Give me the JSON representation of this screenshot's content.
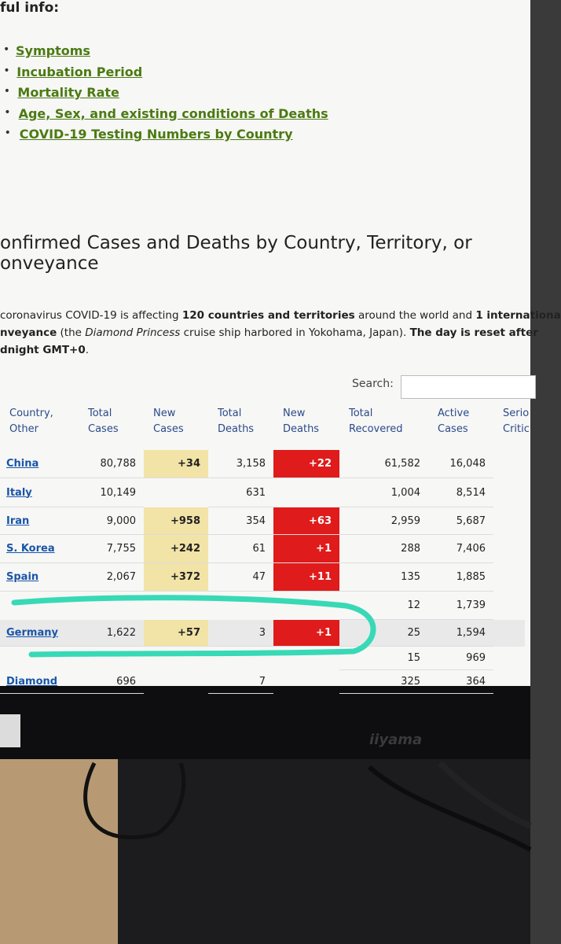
{
  "header": {
    "title": "ful info:"
  },
  "links": [
    "Symptoms",
    "Incubation Period",
    "Mortality Rate",
    "Age, Sex, and existing conditions of Deaths",
    "COVID-19 Testing Numbers by Country"
  ],
  "section": {
    "title_lines": [
      "onfirmed Cases and Deaths by Country, Territory, or",
      "onveyance"
    ],
    "intro_lines": [
      [
        {
          "text": " coronavirus COVID-19 is affecting ",
          "style": "n"
        },
        {
          "text": "120 countries and territories",
          "style": "b"
        },
        {
          "text": " around the world and ",
          "style": "n"
        },
        {
          "text": "1 internationa",
          "style": "b"
        }
      ],
      [
        {
          "text": "nveyance",
          "style": "b"
        },
        {
          "text": " (the ",
          "style": "n"
        },
        {
          "text": "Diamond Princess",
          "style": "i"
        },
        {
          "text": " cruise ship harbored in Yokohama, Japan). ",
          "style": "n"
        },
        {
          "text": "The day is reset after",
          "style": "b"
        }
      ],
      [
        {
          "text": "dnight GMT+0",
          "style": "b"
        },
        {
          "text": ".",
          "style": "n"
        }
      ]
    ],
    "search_label": "Search:"
  },
  "table": {
    "columns": [
      {
        "key": "country",
        "lines": [
          "Country,",
          "Other"
        ]
      },
      {
        "key": "total_cases",
        "lines": [
          "Total",
          "Cases"
        ]
      },
      {
        "key": "new_cases",
        "lines": [
          "New",
          "Cases"
        ]
      },
      {
        "key": "total_deaths",
        "lines": [
          "Total",
          "Deaths"
        ]
      },
      {
        "key": "new_deaths",
        "lines": [
          "New",
          "Deaths"
        ]
      },
      {
        "key": "total_recovered",
        "lines": [
          "Total",
          "Recovered"
        ]
      },
      {
        "key": "active_cases",
        "lines": [
          "Active",
          "Cases"
        ]
      },
      {
        "key": "serious",
        "lines": [
          "Serio",
          "Critic"
        ]
      }
    ],
    "rows": [
      {
        "country": "China",
        "total_cases": "80,788",
        "new_cases": "+34",
        "total_deaths": "3,158",
        "new_deaths": "+22",
        "total_recovered": "61,582",
        "active_cases": "16,048"
      },
      {
        "country": "Italy",
        "total_cases": "10,149",
        "total_deaths": "631",
        "total_recovered": "1,004",
        "active_cases": "8,514"
      },
      {
        "country": "Iran",
        "total_cases": "9,000",
        "new_cases": "+958",
        "total_deaths": "354",
        "new_deaths": "+63",
        "total_recovered": "2,959",
        "active_cases": "5,687"
      },
      {
        "country": "S. Korea",
        "total_cases": "7,755",
        "new_cases": "+242",
        "total_deaths": "61",
        "new_deaths": "+1",
        "total_recovered": "288",
        "active_cases": "7,406"
      },
      {
        "country": "Spain",
        "total_cases": "2,067",
        "new_cases": "+372",
        "total_deaths": "47",
        "new_deaths": "+11",
        "total_recovered": "135",
        "active_cases": "1,885"
      },
      {
        "total_recovered": "12",
        "active_cases": "1,739"
      },
      {
        "country": "Germany",
        "total_cases": "1,622",
        "new_cases": "+57",
        "total_deaths": "3",
        "new_deaths": "+1",
        "total_recovered": "25",
        "active_cases": "1,594"
      },
      {
        "total_recovered": "15",
        "active_cases": "969"
      },
      {
        "country": "Diamond",
        "total_cases": "696",
        "total_deaths": "7",
        "total_recovered": "325",
        "active_cases": "364"
      }
    ]
  },
  "monitor": {
    "brand": "iiyama"
  }
}
